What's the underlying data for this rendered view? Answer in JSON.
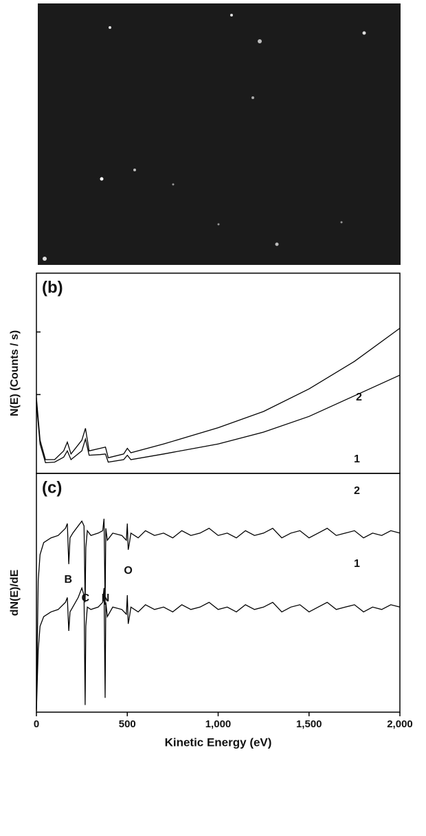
{
  "chart_data": [
    {
      "type": "line",
      "label": "(b)",
      "ylabel": "N(E) (Counts / s)",
      "xlim": [
        0,
        2000
      ],
      "ylim": [
        -0.26,
        2.94
      ],
      "yticks": [
        1,
        2
      ],
      "x": [
        0,
        20,
        50,
        100,
        150,
        170,
        190,
        250,
        270,
        290,
        350,
        380,
        395,
        480,
        500,
        520,
        700,
        1000,
        1250,
        1500,
        1750,
        2000
      ],
      "series": [
        {
          "name": "2",
          "color": "#000000",
          "values": [
            0.95,
            0.27,
            -0.04,
            -0.04,
            0.1,
            0.24,
            0.05,
            0.27,
            0.46,
            0.1,
            0.14,
            0.16,
            -0.01,
            0.05,
            0.14,
            0.07,
            0.21,
            0.47,
            0.73,
            1.09,
            1.53,
            2.06
          ]
        },
        {
          "name": "1",
          "color": "#000000",
          "values": [
            0.87,
            0.21,
            -0.09,
            -0.08,
            0.0,
            0.1,
            -0.04,
            0.1,
            0.29,
            0.03,
            0.04,
            0.05,
            -0.08,
            -0.04,
            0.03,
            -0.04,
            0.05,
            0.21,
            0.4,
            0.65,
            0.98,
            1.31
          ]
        }
      ]
    },
    {
      "type": "line",
      "label": "(c)",
      "ylabel": "dN(E)/dE",
      "xlabel": "Kinetic Energy (eV)",
      "xlim": [
        0,
        2000
      ],
      "ylim": [
        0,
        10
      ],
      "xticks": [
        0,
        500,
        {
          "value": 1000,
          "label": "1,000"
        },
        {
          "value": 1500,
          "label": "1,500"
        },
        {
          "value": 2000,
          "label": "2,000"
        }
      ],
      "x": [
        0,
        10,
        20,
        40,
        80,
        120,
        160,
        170,
        178,
        185,
        200,
        230,
        250,
        262,
        268,
        272,
        280,
        300,
        340,
        365,
        372,
        378,
        382,
        390,
        420,
        470,
        495,
        500,
        505,
        510,
        520,
        560,
        600,
        650,
        700,
        750,
        800,
        850,
        900,
        950,
        1000,
        1050,
        1100,
        1150,
        1200,
        1250,
        1300,
        1350,
        1400,
        1450,
        1500,
        1550,
        1600,
        1650,
        1700,
        1750,
        1800,
        1850,
        1900,
        1950,
        2000
      ],
      "series": [
        {
          "name": "2",
          "color": "#000000",
          "values": [
            0.14,
            5.5,
            6.6,
            7.1,
            7.3,
            7.4,
            7.7,
            7.9,
            6.2,
            7.3,
            7.5,
            7.8,
            8.0,
            7.8,
            4.6,
            6.9,
            7.6,
            7.4,
            7.5,
            7.6,
            8.1,
            4.5,
            7.7,
            7.2,
            7.5,
            7.4,
            7.2,
            7.9,
            6.8,
            7.0,
            7.5,
            7.3,
            7.6,
            7.4,
            7.5,
            7.3,
            7.6,
            7.4,
            7.5,
            7.7,
            7.4,
            7.5,
            7.3,
            7.6,
            7.4,
            7.5,
            7.7,
            7.3,
            7.5,
            7.6,
            7.3,
            7.5,
            7.7,
            7.4,
            7.5,
            7.6,
            7.3,
            7.5,
            7.4,
            7.6,
            7.5
          ]
        },
        {
          "name": "1",
          "color": "#000000",
          "values": [
            0.06,
            2.6,
            3.6,
            4.0,
            4.2,
            4.3,
            4.6,
            4.8,
            3.4,
            4.2,
            4.4,
            4.8,
            5.2,
            4.9,
            0.3,
            3.6,
            4.4,
            4.3,
            4.4,
            4.6,
            5.2,
            0.6,
            4.6,
            4.0,
            4.4,
            4.3,
            4.1,
            4.9,
            3.7,
            3.9,
            4.4,
            4.2,
            4.5,
            4.3,
            4.4,
            4.2,
            4.5,
            4.3,
            4.4,
            4.6,
            4.3,
            4.4,
            4.2,
            4.5,
            4.3,
            4.4,
            4.6,
            4.2,
            4.4,
            4.5,
            4.2,
            4.4,
            4.6,
            4.3,
            4.4,
            4.5,
            4.2,
            4.4,
            4.3,
            4.5,
            4.4
          ]
        }
      ],
      "annotations": [
        {
          "text": "B",
          "x": 175
        },
        {
          "text": "C",
          "x": 270
        },
        {
          "text": "N",
          "x": 380
        },
        {
          "text": "O",
          "x": 505
        }
      ]
    }
  ]
}
